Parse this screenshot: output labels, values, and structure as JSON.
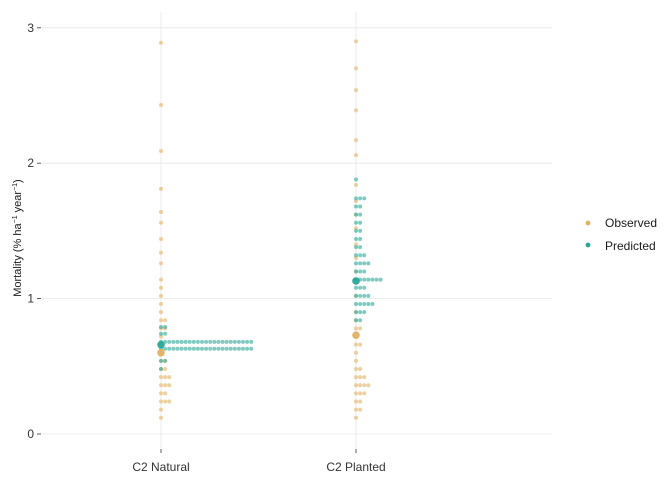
{
  "chart_data": {
    "type": "scatter",
    "subtype": "dot-plot",
    "categories": [
      "C2 Natural",
      "C2 Planted"
    ],
    "ylabel": "Mortality (% ha^-1 year^-1)",
    "ylabel_parts": {
      "prefix": "Mortality (% ha",
      "sup1": "−1",
      "middle": " year",
      "sup2": "−1",
      "suffix": ")"
    },
    "ylim": [
      -0.1,
      3.1
    ],
    "yticks": [
      0,
      1,
      2,
      3
    ],
    "grid": true,
    "legend_position": "right",
    "series": [
      {
        "name": "Observed",
        "color": "#E3B163",
        "dots": [
          {
            "category": "C2 Natural",
            "bins": [
              [
                0.12,
                1
              ],
              [
                0.18,
                1
              ],
              [
                0.24,
                3
              ],
              [
                0.3,
                2
              ],
              [
                0.36,
                3
              ],
              [
                0.42,
                3
              ],
              [
                0.48,
                2
              ],
              [
                0.54,
                2
              ],
              [
                0.6,
                1
              ],
              [
                0.66,
                1
              ],
              [
                0.72,
                1
              ],
              [
                0.78,
                2
              ],
              [
                0.84,
                2
              ],
              [
                0.9,
                1
              ],
              [
                0.96,
                1
              ],
              [
                1.02,
                1
              ],
              [
                1.08,
                1
              ],
              [
                1.14,
                1
              ],
              [
                1.26,
                1
              ],
              [
                1.34,
                1
              ],
              [
                1.44,
                1
              ],
              [
                1.56,
                1
              ],
              [
                1.64,
                1
              ],
              [
                1.81,
                1
              ],
              [
                2.09,
                1
              ],
              [
                2.43,
                1
              ],
              [
                2.89,
                1
              ]
            ]
          },
          {
            "category": "C2 Planted",
            "bins": [
              [
                0.12,
                1
              ],
              [
                0.18,
                2
              ],
              [
                0.24,
                2
              ],
              [
                0.3,
                3
              ],
              [
                0.36,
                4
              ],
              [
                0.42,
                3
              ],
              [
                0.48,
                2
              ],
              [
                0.54,
                1
              ],
              [
                0.6,
                1
              ],
              [
                0.66,
                2
              ],
              [
                0.72,
                1
              ],
              [
                0.78,
                2
              ],
              [
                0.84,
                1
              ],
              [
                0.9,
                1
              ],
              [
                1.02,
                1
              ],
              [
                1.14,
                1
              ],
              [
                1.2,
                1
              ],
              [
                1.3,
                1
              ],
              [
                1.4,
                1
              ],
              [
                1.52,
                1
              ],
              [
                1.62,
                1
              ],
              [
                1.72,
                1
              ],
              [
                1.84,
                1
              ],
              [
                2.06,
                1
              ],
              [
                2.17,
                1
              ],
              [
                2.39,
                1
              ],
              [
                2.54,
                1
              ],
              [
                2.7,
                1
              ],
              [
                2.9,
                1
              ]
            ]
          }
        ],
        "means": [
          0.6,
          0.73
        ]
      },
      {
        "name": "Predicted",
        "color": "#2BA898",
        "dots": [
          {
            "category": "C2 Natural",
            "bins": [
              [
                0.48,
                1
              ],
              [
                0.54,
                2
              ],
              [
                0.63,
                23
              ],
              [
                0.68,
                23
              ],
              [
                0.74,
                2
              ],
              [
                0.79,
                2
              ]
            ]
          },
          {
            "category": "C2 Planted",
            "bins": [
              [
                0.84,
                2
              ],
              [
                0.9,
                3
              ],
              [
                0.96,
                5
              ],
              [
                1.02,
                4
              ],
              [
                1.08,
                3
              ],
              [
                1.14,
                7
              ],
              [
                1.2,
                3
              ],
              [
                1.26,
                4
              ],
              [
                1.32,
                3
              ],
              [
                1.38,
                2
              ],
              [
                1.44,
                2
              ],
              [
                1.5,
                2
              ],
              [
                1.56,
                2
              ],
              [
                1.62,
                2
              ],
              [
                1.68,
                2
              ],
              [
                1.74,
                3
              ],
              [
                1.88,
                1
              ]
            ]
          }
        ],
        "means": [
          0.66,
          1.13
        ]
      }
    ]
  }
}
